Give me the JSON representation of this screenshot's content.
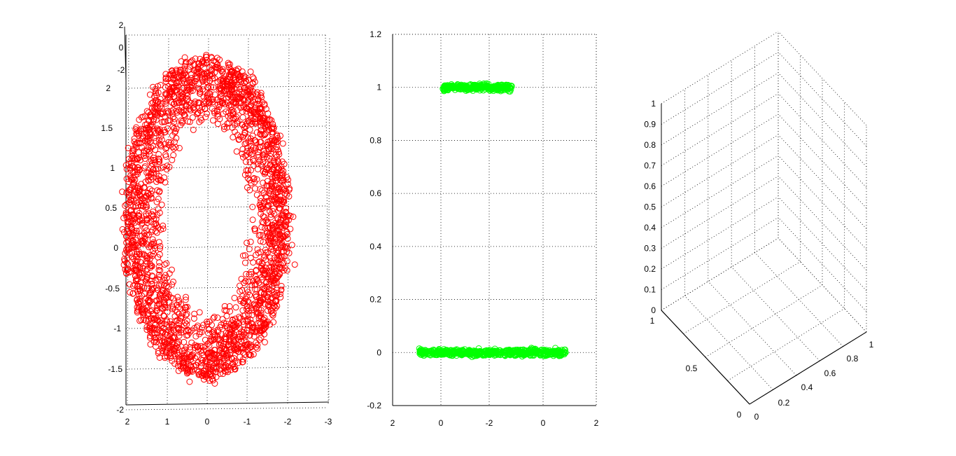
{
  "figure": {
    "background": "#ffffff"
  },
  "chart_data": [
    {
      "type": "scatter",
      "subtype": "3d-scatter",
      "marker": "circle",
      "color": "#ff0000",
      "shape": "elliptical ring (torus viewed from above)",
      "x_ticklabels": [
        "2",
        "1",
        "0",
        "-1",
        "-2",
        "-3"
      ],
      "y_ticklabels": [
        "2",
        "1.5",
        "1",
        "0.5",
        "0",
        "-0.5",
        "-1",
        "-1.5",
        "-2"
      ],
      "z_ticklabels": [
        "2",
        "0",
        "-2"
      ],
      "xlim": [
        -3,
        2
      ],
      "ylim": [
        -2,
        2
      ],
      "zlim": [
        -2,
        2
      ],
      "series": [
        {
          "ring_center": [
            0,
            0.5
          ],
          "outer_radii": [
            2.0,
            2.1
          ],
          "inner_radii": [
            1.0,
            1.25
          ],
          "approx_points": 2500
        }
      ],
      "grid": true
    },
    {
      "type": "scatter",
      "marker": "circle",
      "color": "#00ff00",
      "x_ticklabels": [
        "2",
        "0",
        "-2",
        "0",
        "2"
      ],
      "y_ticklabels": [
        "1.2",
        "1",
        "0.8",
        "0.6",
        "0.4",
        "0.2",
        "0",
        "-0.2"
      ],
      "ylim": [
        -0.2,
        1.2
      ],
      "series": [
        {
          "y": 0,
          "x_range": [
            -0.9,
            0.9
          ],
          "approx_points": 600
        },
        {
          "y": 1,
          "x_range": [
            -0.6,
            0.25
          ],
          "approx_points": 300
        }
      ],
      "grid": true
    },
    {
      "type": "scatter",
      "subtype": "3d-empty",
      "x_ticklabels": [
        "0",
        "0.2",
        "0.4",
        "0.6",
        "0.8",
        "1"
      ],
      "y_ticklabels": [
        "0",
        "0.5",
        "1"
      ],
      "z_ticklabels": [
        "0",
        "0.1",
        "0.2",
        "0.3",
        "0.4",
        "0.5",
        "0.6",
        "0.7",
        "0.8",
        "0.9",
        "1"
      ],
      "xlim": [
        0,
        1
      ],
      "ylim": [
        0,
        1
      ],
      "zlim": [
        0,
        1
      ],
      "series": [],
      "grid": true
    }
  ]
}
